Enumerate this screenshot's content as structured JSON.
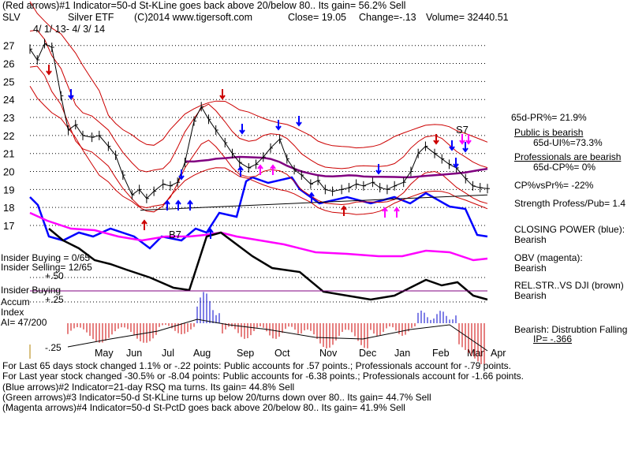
{
  "header": {
    "line1": "(Red arrows)#1 Indicator=50-d St-KLine goes back above 20/below 80.. Its gain= 56.2% Sell",
    "symbol": "SLV",
    "name": "Silver ETF",
    "copyright": "(C)2014 www.tigersoft.com",
    "close": "Close=  19.05",
    "change": "Change=-.13",
    "volume": "Volume= 32440.51",
    "dates": "4/ 1/ 13-  4/ 3/ 14"
  },
  "left_labels": {
    "insider_buying_count": "Insider Buying = 0/65",
    "insider_selling_count": "Insider Selling= 12/65",
    "plus50": "+.50",
    "insider_buying": "Insider Buying",
    "accum": "Accum",
    "plus25": "+.25",
    "index": "Index",
    "ai": "AI= 47/200",
    "minus25": "-.25"
  },
  "annotations": {
    "b7": "B7",
    "s7": "S7"
  },
  "right_panel": {
    "pr65": "65d-PR%= 21.9%",
    "public_bearish": "Public is bearish",
    "ui65": "65d-UI%=73.3%",
    "pros_bearish": "Professionals are bearish",
    "cp65": "65d-CP%= 0%",
    "cpvspr": "CP%vsPr%= -22%",
    "strength": "Strength Profess/Pub= 1.4",
    "closing_power": "CLOSING POWER (blue):",
    "closing_power_val": "Bearish",
    "obv": "OBV (magenta):",
    "obv_val": "Bearish",
    "relstr": "REL.STR..VS DJI (brown)",
    "relstr_val": "Bearish",
    "bearish_dist": "Bearish: Distrubtion Falling",
    "ip": "IP= -.366"
  },
  "footer": [
    "For Last 65 days stock changed  1.1% or -.22 points:  Public accounts for  .57 points.;  Professionals account for -.79 points.",
    "For Last year stock changed -30.5% or -8.04 points:  Public accounts for -6.38 points.;  Professionals account for -1.66 points.",
    "(Blue arrows)#2 Indicator=21-day RSQ ma turns. Its gain= 44.8% Sell",
    "(Green arrows)#3 Indicator=50-d St-KLine turns up below 20/turns down over 80..  Its gain= 44.7% Sell",
    "(Magenta arrows)#4 Indicator=50-d St-PctD goes back above 20/below 80.. Its gain= 41.9% Sell"
  ],
  "chart_data": {
    "type": "line",
    "title": "SLV  Silver ETF",
    "ylim": [
      16.3,
      27.6
    ],
    "yticks": [
      17,
      18,
      19,
      20,
      21,
      22,
      23,
      24,
      25,
      26,
      27
    ],
    "months": [
      "May",
      "Jun",
      "Jul",
      "Aug",
      "Sep",
      "Oct",
      "Nov",
      "Dec",
      "Jan",
      "Feb",
      "Mar",
      "Apr"
    ],
    "x": [
      0,
      4,
      8,
      12,
      17,
      21,
      25,
      29,
      34,
      38,
      43,
      47,
      51,
      56,
      60,
      64,
      68,
      73,
      77,
      81,
      85,
      90,
      94,
      98,
      102,
      107,
      111,
      115,
      120,
      124,
      128,
      132,
      137,
      141,
      145,
      149,
      154,
      158,
      162,
      166,
      171,
      175,
      179,
      183,
      188,
      192,
      196,
      200,
      205,
      209,
      213,
      217,
      222,
      226,
      230,
      234,
      239,
      243,
      247,
      251
    ],
    "series": [
      {
        "name": "price",
        "values": [
          26.8,
          26.2,
          27.1,
          26.9,
          24.2,
          22.3,
          22.6,
          22.0,
          21.9,
          22.0,
          21.4,
          20.9,
          19.8,
          18.7,
          19.0,
          18.5,
          18.9,
          19.3,
          19.2,
          19.4,
          20.5,
          22.8,
          23.6,
          22.9,
          22.3,
          21.6,
          21.0,
          20.5,
          20.2,
          20.4,
          20.8,
          21.3,
          21.8,
          20.7,
          20.1,
          19.8,
          19.3,
          19.5,
          19.0,
          18.9,
          19.0,
          19.1,
          19.3,
          19.2,
          19.4,
          19.1,
          19.0,
          19.2,
          19.4,
          20.0,
          21.0,
          21.4,
          21.0,
          20.7,
          20.4,
          20.2,
          19.6,
          19.2,
          19.1,
          19.05
        ]
      }
    ]
  },
  "colors": {
    "price": "#000000",
    "bands": "#cc0000",
    "ma": "#800080",
    "closing_power": "#0000ff",
    "obv": "#ff00ff",
    "relstr": "#000000",
    "accum_pos": "#0000cc",
    "accum_neg": "#cc0000"
  }
}
